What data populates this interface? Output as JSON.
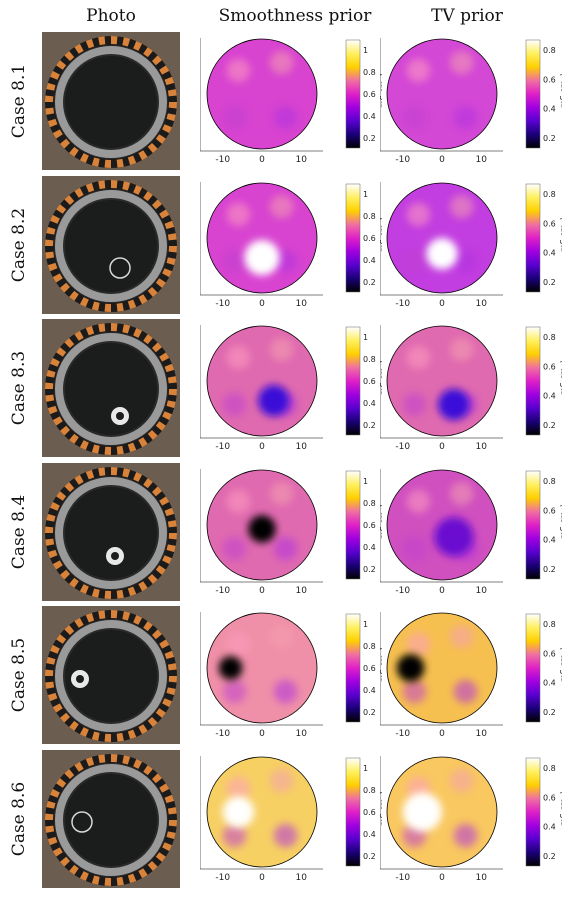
{
  "headers": {
    "photo": "Photo",
    "smooth": "Smoothness prior",
    "tv": "TV prior"
  },
  "colorbar": {
    "smooth_ticks": [
      "1",
      "0.8",
      "0.6",
      "0.4",
      "0.2"
    ],
    "smooth_unit": "mS cm⁻¹",
    "tv_ticks": [
      "0.8",
      "0.6",
      "0.4",
      "0.2"
    ],
    "tv_unit": "mS cm⁻¹",
    "colormap": [
      "#000000",
      "#1a0078",
      "#5a00d0",
      "#a000e0",
      "#e020c8",
      "#f070a0",
      "#ffd000",
      "#fff060",
      "#ffffff"
    ]
  },
  "axes": {
    "yticks": [
      "10",
      "5",
      "0",
      "-5",
      "-10"
    ],
    "xticks": [
      "-10",
      "0",
      "10"
    ]
  },
  "rows": [
    {
      "label": "Case 8.1",
      "smooth": {
        "base": "#d844d0",
        "blobs": []
      },
      "tv": {
        "base": "#d448d6",
        "blobs": []
      }
    },
    {
      "label": "Case 8.2",
      "smooth": {
        "base": "#d844d0",
        "blobs": [
          {
            "x": 0,
            "y": -5,
            "r": 4.5,
            "c": "#ffffff"
          }
        ]
      },
      "tv": {
        "base": "#c33ee0",
        "blobs": [
          {
            "x": 0,
            "y": -4,
            "r": 4,
            "c": "#ffffff"
          }
        ]
      }
    },
    {
      "label": "Case 8.3",
      "smooth": {
        "base": "#e06ab0",
        "blobs": [
          {
            "x": 3,
            "y": -5,
            "r": 4,
            "c": "#3a10d8"
          }
        ]
      },
      "tv": {
        "base": "#e06ab0",
        "blobs": [
          {
            "x": 3,
            "y": -6,
            "r": 4,
            "c": "#3a10d8"
          }
        ]
      }
    },
    {
      "label": "Case 8.4",
      "smooth": {
        "base": "#e06ab0",
        "blobs": [
          {
            "x": 0,
            "y": -1,
            "r": 3.5,
            "c": "#000000"
          }
        ]
      },
      "tv": {
        "base": "#d050c0",
        "blobs": [
          {
            "x": 3,
            "y": -3,
            "r": 5,
            "c": "#6a10d0"
          }
        ]
      }
    },
    {
      "label": "Case 8.5",
      "smooth": {
        "base": "#f090a8",
        "blobs": [
          {
            "x": -8,
            "y": 0,
            "r": 3,
            "c": "#000000"
          }
        ]
      },
      "tv": {
        "base": "#f6c050",
        "blobs": [
          {
            "x": -8,
            "y": 0,
            "r": 3.5,
            "c": "#000000"
          }
        ]
      }
    },
    {
      "label": "Case 8.6",
      "smooth": {
        "base": "#f7d064",
        "blobs": [
          {
            "x": -6,
            "y": 0,
            "r": 4,
            "c": "#ffffff"
          }
        ]
      },
      "tv": {
        "base": "#f9c860",
        "blobs": [
          {
            "x": -5,
            "y": 0,
            "r": 5,
            "c": "#ffffff"
          }
        ]
      }
    }
  ]
}
